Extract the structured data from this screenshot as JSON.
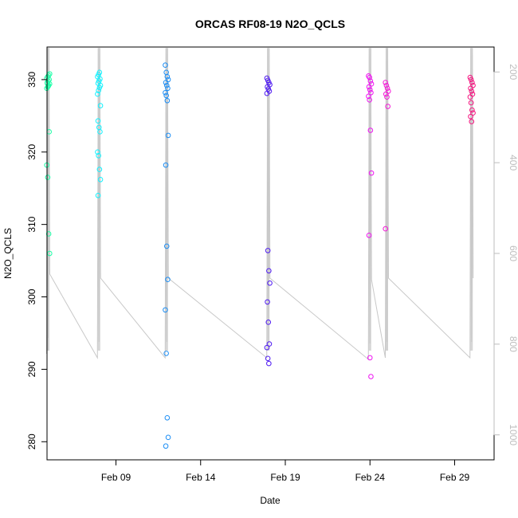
{
  "chart_data": {
    "type": "scatter",
    "title": "ORCAS RF08-19 N2O_QCLS",
    "xlabel": "Date",
    "ylabel": "N2O_QCLS",
    "xlim": [
      "2016-02-04",
      "2016-03-02"
    ],
    "ylim": [
      277.5,
      334.5
    ],
    "x_ticks": [
      "Feb 09",
      "Feb 14",
      "Feb 19",
      "Feb 24",
      "Feb 29"
    ],
    "y_ticks": [
      280,
      290,
      300,
      310,
      320,
      330
    ],
    "right_axis": {
      "ylim": [
        1055,
        145
      ],
      "reversed": true,
      "ticks": [
        200,
        400,
        600,
        800,
        1000
      ],
      "color": "#bdbdbd"
    },
    "grid": false,
    "legend": "none",
    "colors": {
      "pressure_line": "#c8c8c8",
      "box": "#000000",
      "right_axis": "#bdbdbd"
    },
    "series": [
      {
        "date": "2016-02-05",
        "color": "#1effa8",
        "values": [
          328.8,
          329.0,
          329.2,
          329.4,
          329.6,
          329.8,
          330.0,
          330.2,
          330.4,
          330.6,
          330.8,
          329.5,
          329.1,
          322.8,
          318.2,
          316.5,
          308.7,
          306.0
        ]
      },
      {
        "date": "2016-02-08",
        "color": "#13f2ff",
        "values": [
          328.0,
          328.5,
          328.9,
          329.2,
          329.5,
          329.8,
          330.1,
          330.4,
          330.7,
          331.0,
          326.4,
          324.3,
          323.4,
          322.8,
          320.0,
          319.5,
          317.6,
          316.2,
          314.0
        ]
      },
      {
        "date": "2016-02-12",
        "color": "#1c8ef5",
        "values": [
          332.0,
          331.0,
          330.4,
          330.0,
          329.6,
          329.2,
          328.8,
          328.2,
          327.8,
          327.1,
          322.3,
          318.2,
          307.0,
          302.4,
          298.2,
          292.2,
          283.3,
          280.6,
          279.4
        ]
      },
      {
        "date": "2016-02-18",
        "color": "#4f1bf2",
        "values": [
          330.2,
          329.9,
          329.6,
          329.3,
          329.0,
          328.7,
          328.4,
          328.1,
          306.4,
          303.6,
          301.9,
          299.3,
          296.5,
          293.5,
          293.0,
          291.5,
          290.8
        ]
      },
      {
        "date": "2016-02-24",
        "color": "#ef13f2",
        "values": [
          330.5,
          330.3,
          329.8,
          329.4,
          329.0,
          328.6,
          328.2,
          327.7,
          327.2,
          323.0,
          317.1,
          308.5,
          291.6,
          289.0
        ]
      },
      {
        "date": "2016-02-25",
        "color": "#f518d8",
        "values": [
          329.6,
          329.2,
          328.8,
          328.4,
          328.0,
          327.6,
          326.3,
          309.4
        ]
      },
      {
        "date": "2016-03-01",
        "color": "#f5137f",
        "values": [
          330.3,
          330.0,
          329.6,
          329.2,
          328.8,
          328.4,
          328.0,
          327.6,
          326.8,
          325.8,
          325.4,
          324.9,
          324.2
        ]
      }
    ]
  }
}
